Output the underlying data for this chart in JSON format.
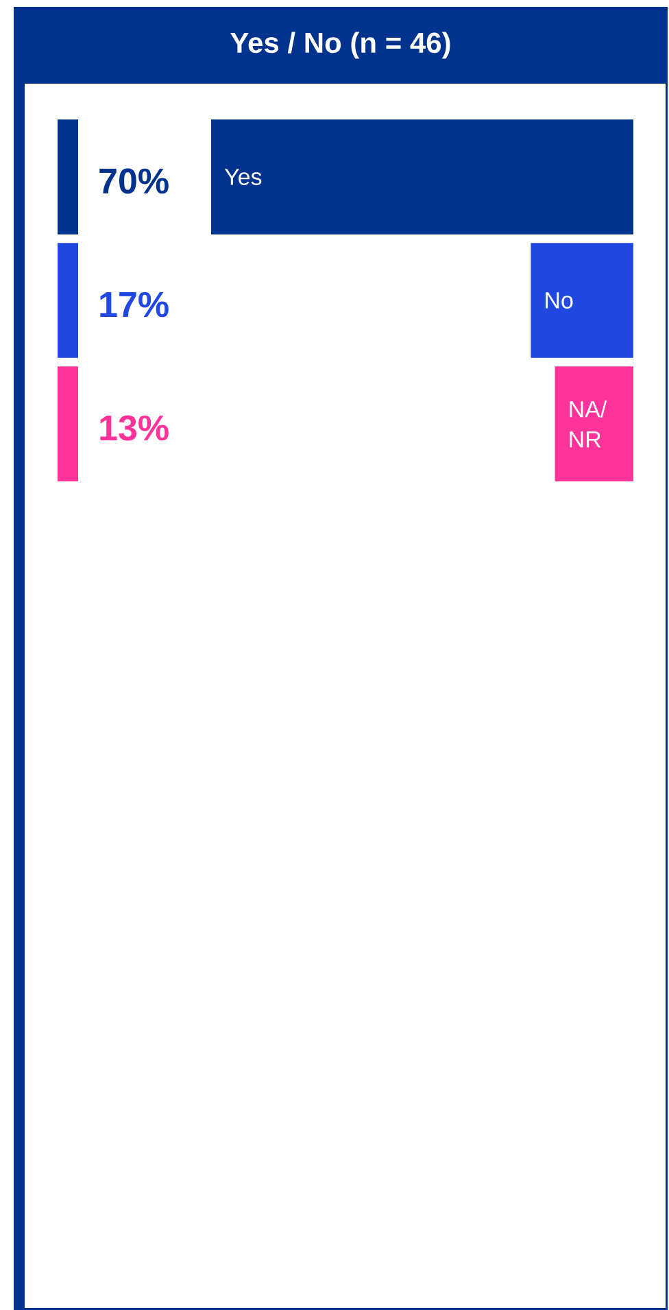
{
  "chart_data": {
    "type": "bar",
    "orientation": "horizontal",
    "title": "Yes / No (n = 46)",
    "categories": [
      "Yes",
      "No",
      "NA/ NR"
    ],
    "values": [
      70,
      17,
      13
    ],
    "colors": [
      "#00338d",
      "#2148e0",
      "#ff3399"
    ],
    "value_labels": [
      "70%",
      "17%",
      "13%"
    ]
  }
}
